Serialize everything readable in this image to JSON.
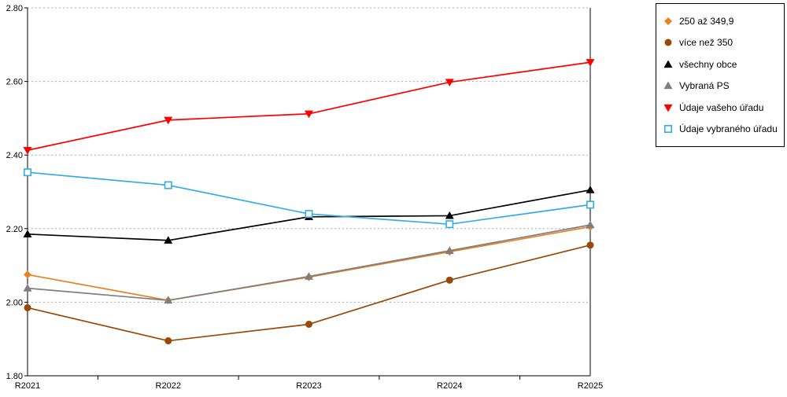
{
  "chart_data": {
    "type": "line",
    "title": "",
    "xlabel": "",
    "ylabel": "",
    "categories": [
      "R2021",
      "R2022",
      "R2023",
      "R2024",
      "R2025"
    ],
    "series": [
      {
        "name": "250 až 349,9",
        "color": "#E8821D",
        "marker": "diamond",
        "values": [
          2.075,
          2.005,
          2.068,
          2.137,
          2.205
        ]
      },
      {
        "name": "více než 350",
        "color": "#984807",
        "marker": "circle",
        "values": [
          1.985,
          1.895,
          1.94,
          2.06,
          2.155
        ]
      },
      {
        "name": "všechny obce",
        "color": "#000000",
        "marker": "triangle-up",
        "values": [
          2.185,
          2.168,
          2.232,
          2.235,
          2.305
        ]
      },
      {
        "name": "Vybraná PS",
        "color": "#7F7F7F",
        "marker": "triangle-up",
        "values": [
          2.038,
          2.005,
          2.07,
          2.14,
          2.21
        ]
      },
      {
        "name": "Údaje vašeho úřadu",
        "color": "#FF0000",
        "marker": "triangle-down",
        "values": [
          2.413,
          2.495,
          2.512,
          2.598,
          2.652
        ]
      },
      {
        "name": "Údaje vybraného úřadu",
        "color": "#33ADE3",
        "marker": "square-open",
        "values": [
          2.353,
          2.318,
          2.24,
          2.212,
          2.265
        ]
      }
    ],
    "ylim": [
      1.8,
      2.8
    ],
    "y_ticks": [
      1.8,
      2.0,
      2.2,
      2.4,
      2.6,
      2.8
    ],
    "y_tick_format": "0.00",
    "grid": "horizontal-dotted",
    "gridline_color": "#ABABAB",
    "legend_position": "outside-top-right"
  }
}
